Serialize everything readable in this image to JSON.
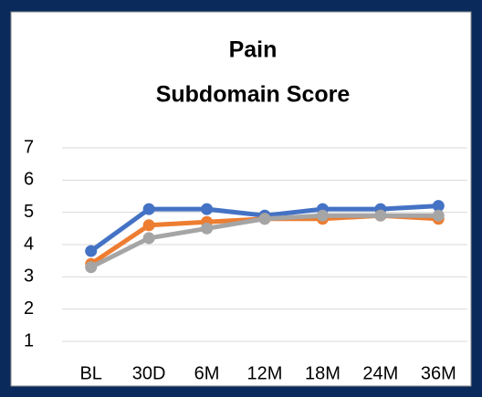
{
  "chart_data": {
    "type": "line",
    "title": [
      "Pain",
      "Subdomain Score"
    ],
    "categories": [
      "BL",
      "30D",
      "6M",
      "12M",
      "18M",
      "24M",
      "36M"
    ],
    "series": [
      {
        "color": "#4472c4",
        "values": [
          3.8,
          5.1,
          5.1,
          4.9,
          5.1,
          5.1,
          5.2
        ]
      },
      {
        "color": "#ed7d31",
        "values": [
          3.4,
          4.6,
          4.7,
          4.8,
          4.8,
          4.9,
          4.8
        ]
      },
      {
        "color": "#a5a5a5",
        "values": [
          3.3,
          4.2,
          4.5,
          4.8,
          4.9,
          4.9,
          4.9
        ]
      }
    ],
    "ylim": [
      1,
      7
    ],
    "yticks": [
      1,
      2,
      3,
      4,
      5,
      6,
      7
    ],
    "grid": true
  }
}
